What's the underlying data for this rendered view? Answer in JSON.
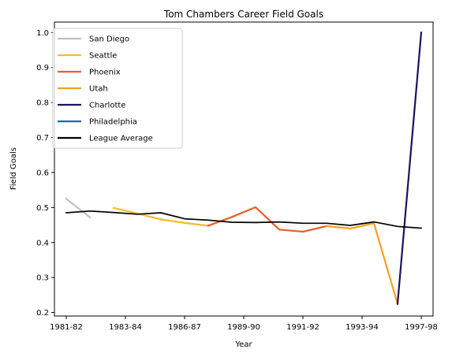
{
  "chart_data": {
    "type": "line",
    "title": "Tom Chambers  Career Field Goals",
    "xlabel": "Year",
    "ylabel": "Field Goals",
    "xlim": [
      0,
      15
    ],
    "ylim": [
      0.19,
      1.03
    ],
    "x_tick_labels": [
      "1981-82",
      "1983-84",
      "1986-87",
      "1989-90",
      "1991-92",
      "1993-94",
      "1997-98"
    ],
    "y_ticks": [
      0.2,
      0.3,
      0.4,
      0.5,
      0.6,
      0.7,
      0.8,
      0.9,
      1.0
    ],
    "y_tick_labels": [
      "0.2",
      "0.3",
      "0.4",
      "0.5",
      "0.6",
      "0.7",
      "0.8",
      "0.9",
      "1.0"
    ],
    "grid": false,
    "legend_position": "upper-left",
    "series": [
      {
        "name": "San Diego",
        "color": "#c0c0c0",
        "x": [
          0,
          1
        ],
        "y": [
          0.525,
          0.472
        ]
      },
      {
        "name": "Seattle",
        "color": "#fdb927",
        "x": [
          2,
          3,
          4,
          5,
          6
        ],
        "y": [
          0.499,
          0.483,
          0.466,
          0.456,
          0.448
        ]
      },
      {
        "name": "Phoenix",
        "color": "#e56020",
        "x": [
          6,
          7,
          8,
          9,
          10,
          11
        ],
        "y": [
          0.448,
          0.473,
          0.501,
          0.437,
          0.431,
          0.447
        ]
      },
      {
        "name": "Utah",
        "color": "#f9a01b",
        "x": [
          11,
          12,
          13,
          14
        ],
        "y": [
          0.447,
          0.44,
          0.455,
          0.225
        ]
      },
      {
        "name": "Charlotte",
        "color": "#1d1160",
        "x": [
          14,
          15
        ],
        "y": [
          0.225,
          1.0
        ]
      },
      {
        "name": "Philadelphia",
        "color": "#006bb6",
        "x": [],
        "y": []
      },
      {
        "name": "League Average",
        "color": "#000000",
        "x": [
          0,
          1,
          2,
          3,
          4,
          5,
          6,
          7,
          8,
          9,
          10,
          11,
          12,
          13,
          14,
          15
        ],
        "y": [
          0.485,
          0.49,
          0.486,
          0.481,
          0.485,
          0.468,
          0.464,
          0.458,
          0.457,
          0.459,
          0.455,
          0.455,
          0.449,
          0.459,
          0.446,
          0.441
        ]
      }
    ]
  }
}
